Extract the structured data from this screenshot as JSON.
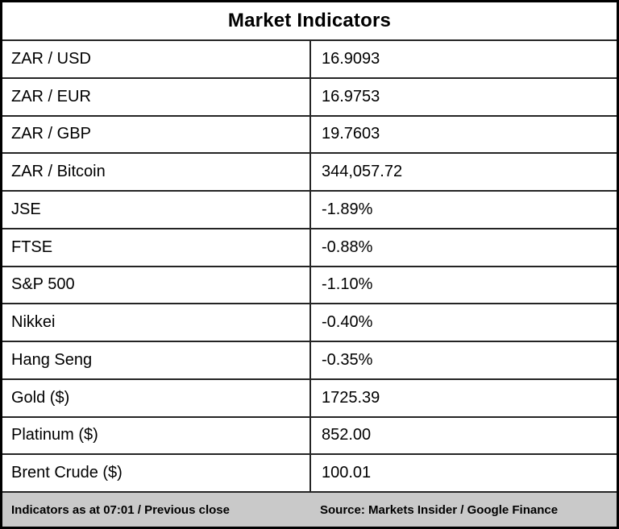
{
  "table": {
    "title": "Market Indicators",
    "rows": [
      {
        "label": "ZAR / USD",
        "value": "16.9093"
      },
      {
        "label": "ZAR / EUR",
        "value": "16.9753"
      },
      {
        "label": "ZAR / GBP",
        "value": "19.7603"
      },
      {
        "label": "ZAR / Bitcoin",
        "value": "344,057.72"
      },
      {
        "label": "JSE",
        "value": "-1.89%"
      },
      {
        "label": "FTSE",
        "value": "-0.88%"
      },
      {
        "label": "S&P 500",
        "value": "-1.10%"
      },
      {
        "label": "Nikkei",
        "value": "-0.40%"
      },
      {
        "label": "Hang Seng",
        "value": "-0.35%"
      },
      {
        "label": "Gold ($)",
        "value": "1725.39"
      },
      {
        "label": "Platinum ($)",
        "value": "852.00"
      },
      {
        "label": "Brent Crude ($)",
        "value": "100.01"
      }
    ],
    "footer": {
      "left": "Indicators as at 07:01 / Previous close",
      "right": "Source: Markets Insider / Google Finance"
    },
    "colors": {
      "outer_border": "#000000",
      "inner_rule": "#242424",
      "footer_background": "#c9c9c9",
      "text": "#000000",
      "background": "#ffffff"
    }
  },
  "chart_data": {
    "type": "table",
    "title": "Market Indicators",
    "categories": [
      "ZAR / USD",
      "ZAR / EUR",
      "ZAR / GBP",
      "ZAR / Bitcoin",
      "JSE",
      "FTSE",
      "S&P 500",
      "Nikkei",
      "Hang Seng",
      "Gold ($)",
      "Platinum ($)",
      "Brent Crude ($)"
    ],
    "values": [
      16.9093,
      16.9753,
      19.7603,
      344057.72,
      -1.89,
      -0.88,
      -1.1,
      -0.4,
      -0.35,
      1725.39,
      852.0,
      100.01
    ],
    "value_display": [
      "16.9093",
      "16.9753",
      "19.7603",
      "344,057.72",
      "-1.89%",
      "-0.88%",
      "-1.10%",
      "-0.40%",
      "-0.35%",
      "1725.39",
      "852.00",
      "100.01"
    ],
    "annotations": [
      "Indicators as at 07:01 / Previous close",
      "Source: Markets Insider / Google Finance"
    ]
  }
}
